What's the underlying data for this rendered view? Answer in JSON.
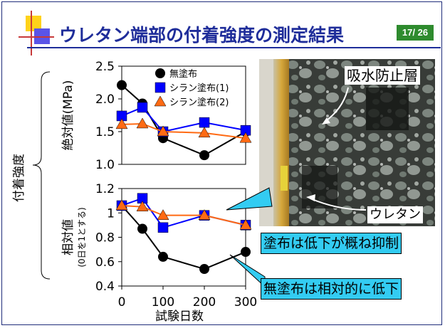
{
  "slide": {
    "title": "ウレタン端部の付着強度の測定結果",
    "page": "17/ 26",
    "y_group_label": "付着強度",
    "x_axis_label": "試験日数",
    "photo_labels": {
      "layer": "吸水防止層",
      "urethane": "ウレタン"
    },
    "callouts": {
      "coated": "塗布は低下が概ね抑制",
      "uncoated": "無塗布は相対的に低下"
    }
  },
  "colors": {
    "black": "#000000",
    "blue": "#0000ff",
    "orange": "#ff6a13",
    "callout_bg": "#33ccf2",
    "title": "#1f2d9a"
  },
  "chart_data": [
    {
      "type": "line",
      "ylabel": "絶対値(MPa)",
      "x": [
        0,
        50,
        100,
        200,
        300
      ],
      "ylim": [
        1.0,
        2.5
      ],
      "yticks": [
        "1.0",
        "1.5",
        "2.0",
        "2.5"
      ],
      "legend": "top-right",
      "series": [
        {
          "name": "無塗布",
          "marker": "circle",
          "color": "#000000",
          "values": [
            2.21,
            1.93,
            1.4,
            1.14,
            1.5
          ]
        },
        {
          "name": "シラン塗布(1)",
          "marker": "square",
          "color": "#0000ff",
          "values": [
            1.74,
            1.87,
            1.5,
            1.64,
            1.52
          ]
        },
        {
          "name": "シラン塗布(2)",
          "marker": "triangle",
          "color": "#ff6a13",
          "values": [
            1.61,
            1.62,
            1.5,
            1.48,
            1.4
          ]
        }
      ]
    },
    {
      "type": "line",
      "ylabel": "相対値",
      "ylabel_sub": "(0日を1とする)",
      "x": [
        0,
        50,
        100,
        200,
        300
      ],
      "xticks": [
        "0",
        "100",
        "200",
        "300"
      ],
      "ylim": [
        0.4,
        1.2
      ],
      "yticks": [
        "0.4",
        "0.6",
        "0.8",
        "1",
        "1.2"
      ],
      "series": [
        {
          "name": "無塗布",
          "marker": "circle",
          "color": "#000000",
          "values": [
            1.06,
            0.87,
            0.64,
            0.54,
            0.68
          ]
        },
        {
          "name": "シラン塗布(1)",
          "marker": "square",
          "color": "#0000ff",
          "values": [
            1.06,
            1.12,
            0.88,
            0.98,
            0.9
          ]
        },
        {
          "name": "シラン塗布(2)",
          "marker": "triangle",
          "color": "#ff6a13",
          "values": [
            1.06,
            1.05,
            0.98,
            0.98,
            0.9
          ]
        }
      ]
    }
  ]
}
